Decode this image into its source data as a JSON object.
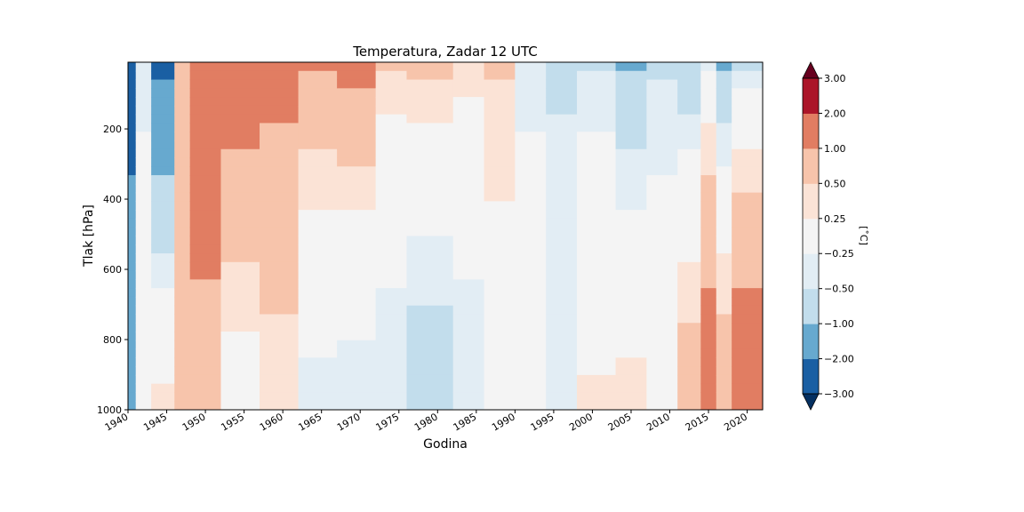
{
  "chart_data": {
    "type": "heatmap",
    "subtype": "filled-contour",
    "title": "Temperatura, Zadar 12 UTC",
    "xlabel": "Godina",
    "ylabel": "Tlak [hPa]",
    "xlim": [
      1940,
      2022
    ],
    "ylim": [
      1000,
      10
    ],
    "y_inverted": true,
    "xticks": [
      "1940",
      "1945",
      "1950",
      "1955",
      "1960",
      "1965",
      "1970",
      "1975",
      "1980",
      "1985",
      "1990",
      "1995",
      "2000",
      "2005",
      "2010",
      "2015",
      "2020"
    ],
    "xtick_values": [
      1940,
      1945,
      1950,
      1955,
      1960,
      1965,
      1970,
      1975,
      1980,
      1985,
      1990,
      1995,
      2000,
      2005,
      2010,
      2015,
      2020
    ],
    "yticks": [
      "200",
      "400",
      "600",
      "800",
      "1000"
    ],
    "ytick_values": [
      200,
      400,
      600,
      800,
      1000
    ],
    "colorbar": {
      "label": "[˚C]",
      "levels": [
        -3.0,
        -2.0,
        -1.0,
        -0.5,
        -0.25,
        0.25,
        0.5,
        1.0,
        2.0,
        3.0
      ],
      "tick_labels": [
        "−3.00",
        "−2.00",
        "−1.00",
        "−0.50",
        "−0.25",
        "0.25",
        "0.50",
        "1.00",
        "2.00",
        "3.00"
      ],
      "extend": "both",
      "colors": [
        "#053061",
        "#1a5fa3",
        "#67a9cf",
        "#c2ddec",
        "#e2edf4",
        "#f4f4f4",
        "#fbe3d6",
        "#f7c4ab",
        "#e17d62",
        "#ab1529",
        "#67001f"
      ]
    },
    "anomaly_bands": [
      {
        "from": 1940,
        "to": 1941,
        "surface_level": -1.5,
        "upper_level": -2.5
      },
      {
        "from": 1941,
        "to": 1943,
        "surface_level": 0.0,
        "upper_level": -0.4
      },
      {
        "from": 1943,
        "to": 1946,
        "surface_level": 0.4,
        "upper_level": -2.5
      },
      {
        "from": 1946,
        "to": 1948,
        "surface_level": 0.6,
        "upper_level": 0.8
      },
      {
        "from": 1948,
        "to": 1952,
        "surface_level": 0.8,
        "upper_level": 1.6
      },
      {
        "from": 1952,
        "to": 1957,
        "surface_level": 0.0,
        "upper_level": 1.8
      },
      {
        "from": 1957,
        "to": 1962,
        "surface_level": 0.3,
        "upper_level": 1.4
      },
      {
        "from": 1962,
        "to": 1967,
        "surface_level": -0.4,
        "upper_level": 1.2
      },
      {
        "from": 1967,
        "to": 1972,
        "surface_level": -0.5,
        "upper_level": 1.4
      },
      {
        "from": 1972,
        "to": 1976,
        "surface_level": -0.5,
        "upper_level": 0.6
      },
      {
        "from": 1976,
        "to": 1982,
        "surface_level": -0.8,
        "upper_level": 0.8
      },
      {
        "from": 1982,
        "to": 1986,
        "surface_level": -0.5,
        "upper_level": 0.5
      },
      {
        "from": 1986,
        "to": 1990,
        "surface_level": 0.0,
        "upper_level": 0.6
      },
      {
        "from": 1990,
        "to": 1994,
        "surface_level": 0.0,
        "upper_level": -0.4
      },
      {
        "from": 1994,
        "to": 1998,
        "surface_level": -0.3,
        "upper_level": -0.6
      },
      {
        "from": 1998,
        "to": 2003,
        "surface_level": 0.3,
        "upper_level": -0.6
      },
      {
        "from": 2003,
        "to": 2007,
        "surface_level": 0.4,
        "upper_level": -1.2
      },
      {
        "from": 2007,
        "to": 2011,
        "surface_level": 0.1,
        "upper_level": -0.6
      },
      {
        "from": 2011,
        "to": 2014,
        "surface_level": 0.8,
        "upper_level": -1.1
      },
      {
        "from": 2014,
        "to": 2016,
        "surface_level": 1.4,
        "upper_level": -0.4
      },
      {
        "from": 2016,
        "to": 2018,
        "surface_level": 0.9,
        "upper_level": -1.3
      },
      {
        "from": 2018,
        "to": 2022,
        "surface_level": 1.5,
        "upper_level": -0.7
      }
    ]
  }
}
